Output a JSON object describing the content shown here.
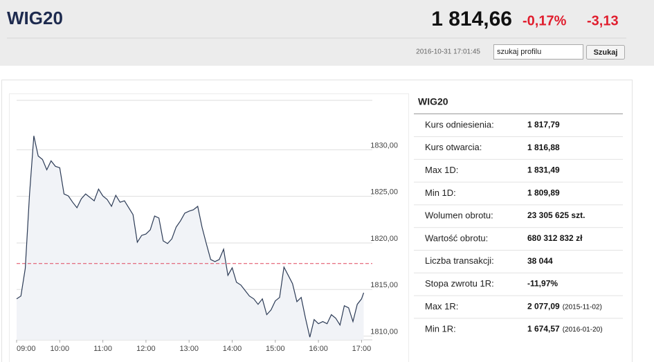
{
  "header": {
    "title": "WIG20",
    "price": "1 814,66",
    "change_pct": "-0,17%",
    "change": "-3,13",
    "timestamp": "2016-10-31 17:01:45",
    "search_placeholder": "szukaj profilu",
    "button": "Szukaj"
  },
  "chart_data": {
    "type": "line",
    "color": "#2b3a55",
    "area_color": "#f1f3f7",
    "reference_line": 1817.79,
    "reference_color": "#e0455c",
    "grid": true,
    "x": [
      "09:00",
      "09:06",
      "09:12",
      "09:18",
      "09:24",
      "09:30",
      "09:36",
      "09:42",
      "09:48",
      "09:54",
      "10:00",
      "10:06",
      "10:12",
      "10:18",
      "10:24",
      "10:30",
      "10:36",
      "10:42",
      "10:48",
      "10:54",
      "11:00",
      "11:06",
      "11:12",
      "11:18",
      "11:24",
      "11:30",
      "11:36",
      "11:42",
      "11:48",
      "11:54",
      "12:00",
      "12:06",
      "12:12",
      "12:18",
      "12:24",
      "12:30",
      "12:36",
      "12:42",
      "12:48",
      "12:54",
      "13:00",
      "13:06",
      "13:12",
      "13:18",
      "13:24",
      "13:30",
      "13:36",
      "13:42",
      "13:48",
      "13:54",
      "14:00",
      "14:06",
      "14:12",
      "14:18",
      "14:24",
      "14:30",
      "14:36",
      "14:42",
      "14:48",
      "14:54",
      "15:00",
      "15:06",
      "15:12",
      "15:18",
      "15:24",
      "15:30",
      "15:36",
      "15:42",
      "15:48",
      "15:54",
      "16:00",
      "16:06",
      "16:12",
      "16:18",
      "16:24",
      "16:30",
      "16:36",
      "16:42",
      "16:48",
      "16:54",
      "17:00",
      "17:03"
    ],
    "values": [
      1814.0,
      1814.3,
      1817.26,
      1825.26,
      1831.49,
      1829.33,
      1828.96,
      1827.85,
      1828.81,
      1828.22,
      1828.07,
      1825.26,
      1825.04,
      1824.37,
      1823.78,
      1824.74,
      1825.26,
      1824.89,
      1824.52,
      1825.78,
      1825.04,
      1824.67,
      1823.93,
      1825.11,
      1824.37,
      1824.52,
      1823.78,
      1823.04,
      1820.07,
      1820.81,
      1820.96,
      1821.41,
      1822.89,
      1822.67,
      1820.22,
      1819.93,
      1820.44,
      1821.7,
      1822.37,
      1823.19,
      1823.41,
      1823.56,
      1823.93,
      1821.7,
      1819.93,
      1818.22,
      1818.0,
      1818.22,
      1819.33,
      1816.52,
      1817.33,
      1815.78,
      1815.48,
      1814.89,
      1814.3,
      1814.0,
      1813.41,
      1814.0,
      1812.3,
      1812.81,
      1813.78,
      1814.15,
      1817.41,
      1816.52,
      1815.63,
      1813.7,
      1814.15,
      1811.93,
      1809.89,
      1811.78,
      1811.33,
      1811.56,
      1811.33,
      1812.3,
      1811.93,
      1811.19,
      1813.26,
      1813.04,
      1811.56,
      1813.41,
      1814.0,
      1814.66
    ],
    "xlim": [
      "09:00",
      "17:15"
    ],
    "xticks": [
      "09:00",
      "10:00",
      "11:00",
      "12:00",
      "13:00",
      "14:00",
      "15:00",
      "16:00",
      "17:00"
    ],
    "ylim": [
      1809.6,
      1835.3
    ],
    "yticks": [
      {
        "value": 1810,
        "label": "1810,00"
      },
      {
        "value": 1815,
        "label": "1815,00"
      },
      {
        "value": 1820,
        "label": "1820,00"
      },
      {
        "value": 1825,
        "label": "1825,00"
      },
      {
        "value": 1830,
        "label": "1830,00"
      }
    ]
  },
  "table": {
    "title": "WIG20",
    "rows": [
      {
        "label": "Kurs odniesienia:",
        "value": "1 817,79"
      },
      {
        "label": "Kurs otwarcia:",
        "value": "1 816,88"
      },
      {
        "label": "Max 1D:",
        "value": "1 831,49"
      },
      {
        "label": "Min 1D:",
        "value": "1 809,89"
      },
      {
        "label": "Wolumen obrotu:",
        "value": "23 305 625 szt."
      },
      {
        "label": "Wartość obrotu:",
        "value": "680 312 832 zł"
      },
      {
        "label": "Liczba transakcji:",
        "value": "38 044"
      },
      {
        "label": "Stopa zwrotu 1R:",
        "value": "-11,97%"
      },
      {
        "label": "Max 1R:",
        "value": "2 077,09",
        "date": "(2015-11-02)"
      },
      {
        "label": "Min 1R:",
        "value": "1 674,57",
        "date": "(2016-01-20)"
      }
    ]
  }
}
